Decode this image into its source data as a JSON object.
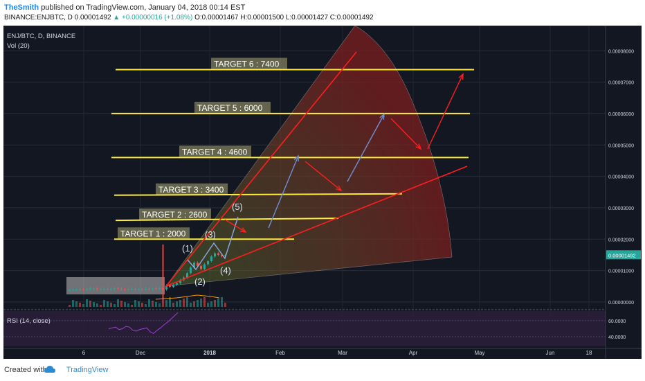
{
  "header": {
    "author": "TheSmith",
    "published": "published on TradingView.com, January 04, 2018 00:14 EST",
    "symbol_line": "BINANCE:ENJBTC, D  0.00001492",
    "change": "▲ +0.00000016 (+1.08%)",
    "ohlc": "O:0.00001467 H:0.00001500 L:0.00001427 C:0.00001492"
  },
  "legend": {
    "title": "ENJ/BTC, D, BINANCE",
    "volume": "Vol (20)",
    "rsi": "RSI (14, close)"
  },
  "footer": {
    "created": "Created with",
    "brand": "TradingView"
  },
  "colors": {
    "background": "#131722",
    "target_line": "#ffeb3b",
    "trend": "#ff1e1e",
    "wave": "#8ea8e6",
    "rsi_panel": "#2a1e3a",
    "rsi_line": "#a43bd6",
    "last_price": "#26a69a"
  },
  "chart_data": {
    "type": "line",
    "title": "ENJ/BTC, D, BINANCE",
    "price_axis": {
      "ticks": [
        "0.00008000",
        "0.00007000",
        "0.00006000",
        "0.00005000",
        "0.00004000",
        "0.00003000",
        "0.00002000",
        "0.00001000",
        "0.00000000"
      ],
      "ticks_values": [
        8,
        7,
        6,
        5,
        4,
        3,
        2,
        1,
        0
      ],
      "scale_note": "values in 1e-5 BTC",
      "range": [
        -0.2,
        8.8
      ],
      "last_price": "0.00001492",
      "last_price_value": 1.492
    },
    "time_axis": {
      "labels": [
        "6",
        "Dec",
        "2018",
        "Feb",
        "Mar",
        "Apr",
        "May",
        "Jun",
        "18"
      ]
    },
    "targets": [
      {
        "label": "TARGET 1 : 2000",
        "value": 2.0
      },
      {
        "label": "TARGET 2 : 2600",
        "value": 2.6
      },
      {
        "label": "TARGET 3 : 3400",
        "value": 3.4
      },
      {
        "label": "TARGET 4 : 4600",
        "value": 4.6
      },
      {
        "label": "TARGET 5 : 6000",
        "value": 6.0
      },
      {
        "label": "TARGET 6 : 7400",
        "value": 7.4
      }
    ],
    "waves": [
      "(1)",
      "(2)",
      "(3)",
      "(4)",
      "(5)"
    ],
    "price_series": [
      0.38,
      0.39,
      0.4,
      0.41,
      0.39,
      0.4,
      0.42,
      0.43,
      0.4,
      0.41,
      0.42,
      0.4,
      0.41,
      0.43,
      0.42,
      0.4,
      0.39,
      0.41,
      0.42,
      0.4,
      0.41,
      0.4,
      0.42,
      0.41,
      0.43,
      0.42,
      0.44,
      0.4,
      0.52,
      0.48,
      0.55,
      0.6,
      0.7,
      0.78,
      0.92,
      1.1,
      1.25,
      1.15,
      1.05,
      1.2,
      1.3,
      1.45,
      1.55,
      1.5,
      1.46,
      1.49
    ],
    "rsi": {
      "ticks": [
        "60.0000",
        "40.0000"
      ],
      "ticks_values": [
        60,
        40
      ],
      "range": [
        28,
        72
      ],
      "values": [
        50,
        51,
        52,
        49,
        50,
        53,
        52,
        48,
        47,
        49,
        50,
        51,
        46,
        44,
        48,
        51,
        55,
        58,
        62,
        66,
        70
      ]
    }
  }
}
